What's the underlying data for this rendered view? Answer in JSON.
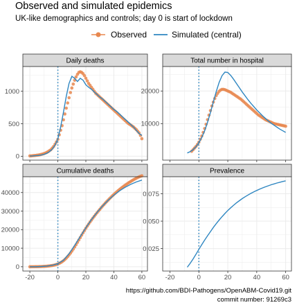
{
  "header": {
    "title": "Observed and simulated epidemics",
    "subtitle": "UK-like demographics and controls; day 0 is start of lockdown"
  },
  "legend": {
    "observed_label": "Observed",
    "simulated_label": "Simulated (central)"
  },
  "colors": {
    "observed": "#E8874F",
    "simulated": "#2E86C1",
    "vline": "#2E86C1",
    "panel_bg": "#ffffff",
    "strip_bg": "#d9d9d9",
    "grid": "#ebebeb"
  },
  "caption": {
    "line1": "https://github.com/BDI-Pathogens/OpenABM-Covid19.git",
    "line2": "commit number: 91269c3"
  },
  "chart_data": [
    {
      "type": "scatter+line",
      "title": "Daily deaths",
      "xlim": [
        -25,
        64
      ],
      "ylim": [
        -60,
        1380
      ],
      "xticks": [
        -20,
        0,
        20,
        40,
        60
      ],
      "xtick_labels": [],
      "yticks": [
        0,
        500,
        1000
      ],
      "ytick_labels": [
        "0",
        "500",
        "1000"
      ],
      "vline_x": 0,
      "observed": {
        "x": [
          -20,
          -19,
          -18,
          -17,
          -16,
          -15,
          -14,
          -13,
          -12,
          -11,
          -10,
          -9,
          -8,
          -7,
          -6,
          -5,
          -4,
          -3,
          -2,
          -1,
          0,
          1,
          2,
          3,
          4,
          5,
          6,
          7,
          8,
          9,
          10,
          11,
          12,
          13,
          14,
          15,
          16,
          17,
          18,
          19,
          20,
          21,
          22,
          23,
          24,
          25,
          26,
          27,
          28,
          29,
          30,
          31,
          32,
          33,
          34,
          35,
          36,
          37,
          38,
          39,
          40,
          41,
          42,
          43,
          44,
          45,
          46,
          47,
          48,
          49,
          50,
          51,
          52,
          53,
          54,
          55,
          56,
          57,
          58,
          59,
          60
        ],
        "y": [
          5,
          5,
          8,
          10,
          12,
          15,
          18,
          22,
          27,
          33,
          40,
          48,
          58,
          70,
          85,
          100,
          125,
          150,
          185,
          220,
          260,
          330,
          400,
          470,
          560,
          650,
          740,
          820,
          900,
          980,
          1050,
          1110,
          1170,
          1220,
          1260,
          1290,
          1300,
          1290,
          1270,
          1240,
          1200,
          1160,
          1120,
          1090,
          1060,
          1030,
          1000,
          970,
          950,
          930,
          910,
          890,
          870,
          850,
          830,
          810,
          790,
          770,
          750,
          730,
          710,
          690,
          670,
          650,
          630,
          610,
          590,
          570,
          550,
          530,
          510,
          495,
          480,
          465,
          450,
          430,
          410,
          385,
          360,
          320,
          270
        ]
      },
      "simulated": {
        "x": [
          -20,
          -18,
          -16,
          -14,
          -12,
          -10,
          -8,
          -6,
          -4,
          -2,
          0,
          2,
          4,
          6,
          8,
          10,
          12,
          14,
          16,
          18,
          20,
          22,
          24,
          26,
          28,
          30,
          32,
          34,
          36,
          38,
          40,
          42,
          44,
          46,
          48,
          50,
          52,
          54,
          56,
          58,
          60
        ],
        "y": [
          3,
          5,
          8,
          12,
          18,
          28,
          45,
          70,
          110,
          170,
          270,
          450,
          680,
          920,
          1120,
          1230,
          1200,
          1150,
          1200,
          1170,
          1100,
          1060,
          1030,
          990,
          950,
          910,
          880,
          840,
          800,
          760,
          720,
          690,
          650,
          610,
          570,
          530,
          490,
          450,
          400,
          350,
          320
        ]
      }
    },
    {
      "type": "scatter+line",
      "title": "Total number in hospital",
      "xlim": [
        -25,
        64
      ],
      "ylim": [
        -1200,
        27500
      ],
      "xticks": [
        -20,
        0,
        20,
        40,
        60
      ],
      "xtick_labels": [],
      "yticks": [
        10000,
        20000
      ],
      "ytick_labels": [
        "10000",
        "20000"
      ],
      "vline_x": 0,
      "observed": {
        "x": [
          -5,
          -4,
          -3,
          -2,
          -1,
          0,
          1,
          2,
          3,
          4,
          5,
          6,
          7,
          8,
          9,
          10,
          11,
          12,
          13,
          14,
          15,
          16,
          17,
          18,
          19,
          20,
          21,
          22,
          23,
          24,
          25,
          26,
          27,
          28,
          29,
          30,
          31,
          32,
          33,
          34,
          35,
          36,
          37,
          38,
          39,
          40,
          41,
          42,
          43,
          44,
          45,
          46,
          47,
          48,
          49,
          50,
          51,
          52,
          53,
          54,
          55,
          56,
          57,
          58,
          59,
          60
        ],
        "y": [
          1500,
          2000,
          2500,
          3000,
          3600,
          4300,
          5200,
          6200,
          7300,
          8500,
          9800,
          11200,
          12600,
          14000,
          15400,
          16600,
          17700,
          18600,
          19300,
          19900,
          20300,
          20500,
          20500,
          20400,
          20200,
          20000,
          19800,
          19600,
          19300,
          19000,
          18700,
          18400,
          18100,
          17800,
          17500,
          17100,
          16700,
          16300,
          15900,
          15500,
          15100,
          14700,
          14300,
          13900,
          13500,
          13100,
          12700,
          12400,
          12100,
          11800,
          11500,
          11200,
          11000,
          10800,
          10600,
          10400,
          10200,
          10000,
          9900,
          9800,
          9700,
          9600,
          9500,
          9400,
          9300,
          9200
        ]
      },
      "simulated": {
        "x": [
          -8,
          -6,
          -4,
          -2,
          0,
          2,
          4,
          6,
          8,
          10,
          12,
          14,
          16,
          18,
          20,
          22,
          24,
          26,
          28,
          30,
          32,
          34,
          36,
          38,
          40,
          42,
          44,
          46,
          48,
          50,
          52,
          54,
          56,
          58,
          60
        ],
        "y": [
          1000,
          1400,
          2000,
          2900,
          4100,
          5700,
          7800,
          10400,
          13400,
          16600,
          19800,
          22600,
          24700,
          25800,
          25700,
          24800,
          23600,
          22300,
          21000,
          19700,
          18500,
          17300,
          16200,
          15200,
          14200,
          13300,
          12400,
          11600,
          10800,
          10100,
          9500,
          8900,
          8300,
          7800,
          7300
        ]
      }
    },
    {
      "type": "scatter+line",
      "title": "Cumulative deaths",
      "xlim": [
        -25,
        64
      ],
      "ylim": [
        -2300,
        48500
      ],
      "xticks": [
        -20,
        0,
        20,
        40,
        60
      ],
      "xtick_labels": [
        "-20",
        "0",
        "20",
        "40",
        "60"
      ],
      "yticks": [
        0,
        10000,
        20000,
        30000,
        40000
      ],
      "ytick_labels": [
        "0",
        "10000",
        "20000",
        "30000",
        "40000"
      ],
      "vline_x": 0,
      "observed": {
        "x": [
          -20,
          -19,
          -18,
          -17,
          -16,
          -15,
          -14,
          -13,
          -12,
          -11,
          -10,
          -9,
          -8,
          -7,
          -6,
          -5,
          -4,
          -3,
          -2,
          -1,
          0,
          1,
          2,
          3,
          4,
          5,
          6,
          7,
          8,
          9,
          10,
          11,
          12,
          13,
          14,
          15,
          16,
          17,
          18,
          19,
          20,
          21,
          22,
          23,
          24,
          25,
          26,
          27,
          28,
          29,
          30,
          31,
          32,
          33,
          34,
          35,
          36,
          37,
          38,
          39,
          40,
          41,
          42,
          43,
          44,
          45,
          46,
          47,
          48,
          49,
          50,
          51,
          52,
          53,
          54,
          55,
          56,
          57,
          58,
          59,
          60
        ],
        "y": [
          5,
          10,
          18,
          28,
          40,
          55,
          73,
          95,
          122,
          155,
          195,
          243,
          301,
          371,
          456,
          556,
          681,
          831,
          1016,
          1236,
          1496,
          1826,
          2226,
          2696,
          3256,
          3906,
          4646,
          5466,
          6366,
          7346,
          8396,
          9506,
          10676,
          11896,
          13156,
          14446,
          15746,
          17036,
          18306,
          19546,
          20746,
          21906,
          23026,
          24116,
          25176,
          26206,
          27206,
          28176,
          29126,
          30056,
          30966,
          31856,
          32726,
          33576,
          34406,
          35216,
          36006,
          36776,
          37526,
          38256,
          38966,
          39656,
          40326,
          40976,
          41606,
          42216,
          42806,
          43376,
          43926,
          44456,
          44966,
          45461,
          45941,
          46406,
          46856,
          47286,
          47696,
          48081,
          48441,
          48761,
          49031
        ]
      },
      "simulated": {
        "x": [
          -20,
          -16,
          -12,
          -8,
          -4,
          0,
          4,
          8,
          12,
          16,
          20,
          24,
          28,
          32,
          36,
          40,
          44,
          48,
          52,
          56,
          60
        ],
        "y": [
          0,
          30,
          120,
          340,
          800,
          1700,
          3500,
          7000,
          11500,
          16300,
          21000,
          25400,
          29300,
          32800,
          35900,
          38600,
          40900,
          42800,
          44400,
          45700,
          46700
        ]
      }
    },
    {
      "type": "line",
      "title": "Prevalence",
      "xlim": [
        -25,
        64
      ],
      "ylim": [
        0.0045,
        0.0905
      ],
      "xticks": [
        -20,
        0,
        20,
        40,
        60
      ],
      "xtick_labels": [
        "-20",
        "0",
        "20",
        "40",
        "60"
      ],
      "yticks": [
        0.025,
        0.05,
        0.075
      ],
      "ytick_labels": [
        "0.025",
        "0.050",
        "0.075"
      ],
      "vline_x": 0,
      "observed": null,
      "simulated": {
        "x": [
          -8,
          -6,
          -4,
          -2,
          0,
          2,
          4,
          6,
          8,
          10,
          12,
          14,
          16,
          18,
          20,
          22,
          24,
          26,
          28,
          30,
          32,
          34,
          36,
          38,
          40,
          42,
          44,
          46,
          48,
          50,
          52,
          54,
          56,
          58,
          60
        ],
        "y": [
          0.008,
          0.0115,
          0.0155,
          0.0198,
          0.0242,
          0.0285,
          0.0327,
          0.0367,
          0.0405,
          0.0442,
          0.0477,
          0.051,
          0.0541,
          0.057,
          0.0597,
          0.0622,
          0.0645,
          0.0667,
          0.0687,
          0.0706,
          0.0723,
          0.0739,
          0.0754,
          0.0767,
          0.078,
          0.0792,
          0.0803,
          0.0813,
          0.0823,
          0.0832,
          0.084,
          0.0848,
          0.0855,
          0.0862,
          0.0868
        ]
      }
    }
  ]
}
